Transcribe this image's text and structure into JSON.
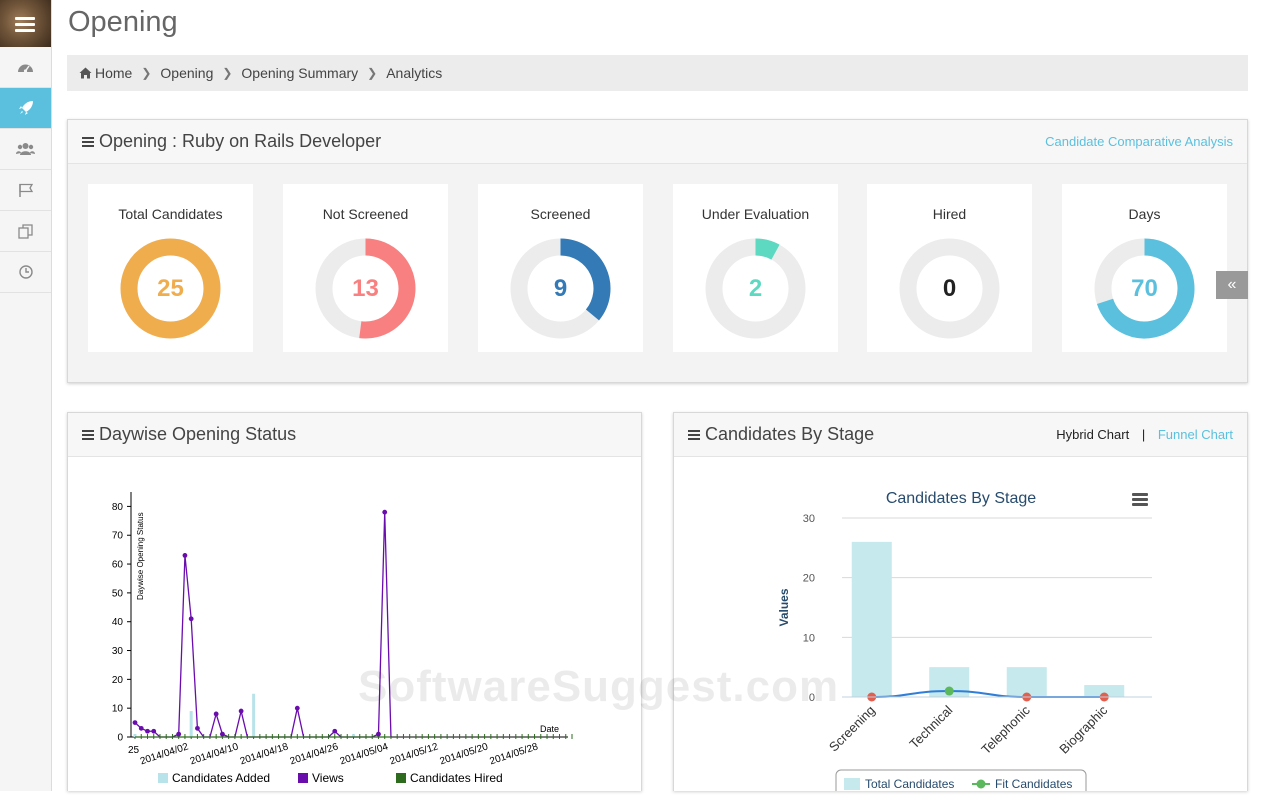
{
  "sidebar": {
    "items": [
      {
        "icon": "dashboard-icon"
      },
      {
        "icon": "rocket-icon",
        "active": true
      },
      {
        "icon": "users-icon"
      },
      {
        "icon": "flag-icon"
      },
      {
        "icon": "copy-icon"
      },
      {
        "icon": "clock-icon"
      }
    ]
  },
  "page": {
    "title": "Opening"
  },
  "breadcrumb": [
    "Home",
    "Opening",
    "Opening Summary",
    "Analytics"
  ],
  "opening_panel": {
    "title": "Opening : Ruby on Rails Developer",
    "link": "Candidate Comparative Analysis"
  },
  "stats": [
    {
      "label": "Total Candidates",
      "value": "25",
      "fraction": 1.0,
      "color": "#f0ad4e"
    },
    {
      "label": "Not Screened",
      "value": "13",
      "fraction": 0.52,
      "color": "#f98080"
    },
    {
      "label": "Screened",
      "value": "9",
      "fraction": 0.36,
      "color": "#337ab7"
    },
    {
      "label": "Under Evaluation",
      "value": "2",
      "fraction": 0.08,
      "color": "#5dd9c1"
    },
    {
      "label": "Hired",
      "value": "0",
      "fraction": 0.0,
      "color": "#222222"
    },
    {
      "label": "Days",
      "value": "70",
      "fraction": 0.7,
      "color": "#5bc0de"
    }
  ],
  "collapse_button": "«",
  "daywise_panel": {
    "title": "Daywise Opening Status"
  },
  "stage_panel": {
    "title": "Candidates By Stage",
    "tab_active": "Hybrid Chart",
    "tab_separator": "|",
    "tab_inactive": "Funnel Chart"
  },
  "chart_data": [
    {
      "type": "line",
      "title": "",
      "ylabel": "Daywise Opening Status",
      "xlabel": "Date",
      "ylim": [
        0,
        85
      ],
      "yticks": [
        0,
        10,
        20,
        30,
        40,
        50,
        60,
        70,
        80
      ],
      "first_tick_label": "25",
      "xtick_labels": [
        "2014/04/02",
        "2014/04/10",
        "2014/04/18",
        "2014/04/26",
        "2014/05/04",
        "2014/05/12",
        "2014/05/20",
        "2014/05/28"
      ],
      "x": [
        "2014/03/25",
        "2014/03/26",
        "2014/03/27",
        "2014/03/28",
        "2014/03/29",
        "2014/03/30",
        "2014/03/31",
        "2014/04/01",
        "2014/04/02",
        "2014/04/03",
        "2014/04/04",
        "2014/04/05",
        "2014/04/06",
        "2014/04/07",
        "2014/04/08",
        "2014/04/09",
        "2014/04/10",
        "2014/04/11",
        "2014/04/12",
        "2014/04/13",
        "2014/04/14",
        "2014/04/15",
        "2014/04/16",
        "2014/04/17",
        "2014/04/18",
        "2014/04/19",
        "2014/04/20",
        "2014/04/21",
        "2014/04/22",
        "2014/04/23",
        "2014/04/24",
        "2014/04/25",
        "2014/04/26",
        "2014/04/27",
        "2014/04/28",
        "2014/04/29",
        "2014/04/30",
        "2014/05/01",
        "2014/05/02",
        "2014/05/03",
        "2014/05/04",
        "2014/05/05"
      ],
      "series": [
        {
          "name": "Candidates Added",
          "color": "#b9e3ea",
          "values": [
            1,
            0,
            0,
            0,
            0,
            0,
            0,
            1,
            0,
            9,
            0,
            0,
            0,
            0,
            0,
            0,
            0,
            0,
            0,
            15,
            0,
            0,
            0,
            0,
            0,
            0,
            0,
            0,
            0,
            0,
            0,
            0,
            0,
            0,
            0,
            1,
            0,
            0,
            0,
            0,
            0,
            0
          ]
        },
        {
          "name": "Views",
          "color": "#6a0dad",
          "values": [
            5,
            3,
            2,
            2,
            0,
            0,
            0,
            1,
            63,
            41,
            3,
            0,
            0,
            8,
            1,
            0,
            0,
            9,
            0,
            0,
            0,
            0,
            0,
            0,
            0,
            0,
            10,
            0,
            0,
            0,
            0,
            0,
            2,
            0,
            0,
            0,
            0,
            0,
            0,
            1,
            78,
            0
          ]
        },
        {
          "name": "Candidates Hired",
          "color": "#2e6b1f",
          "values": [
            0,
            0,
            0,
            0,
            0,
            0,
            0,
            0,
            0,
            0,
            0,
            0,
            0,
            0,
            0,
            0,
            0,
            0,
            0,
            0,
            0,
            0,
            0,
            0,
            0,
            0,
            0,
            0,
            0,
            0,
            0,
            0,
            0,
            0,
            0,
            0,
            0,
            0,
            0,
            0,
            0,
            0
          ]
        }
      ]
    },
    {
      "type": "bar",
      "title": "Candidates By Stage",
      "ylabel": "Values",
      "xlabel": "",
      "ylim": [
        0,
        30
      ],
      "yticks": [
        0,
        10,
        20,
        30
      ],
      "categories": [
        "Screening",
        "Technical",
        "Telephonic",
        "Biographic"
      ],
      "series": [
        {
          "name": "Total Candidates",
          "type": "bar",
          "color": "#c5e9ec",
          "values": [
            26,
            5,
            5,
            2
          ]
        },
        {
          "name": "Fit Candidates",
          "type": "line",
          "color": "#5cb85c",
          "values": [
            0,
            1,
            0,
            0
          ]
        }
      ],
      "marker_colors": [
        "#e15f4f",
        "#5cb85c",
        "#e15f4f",
        "#e15f4f"
      ]
    }
  ],
  "watermark": "SoftwareSuggest.com"
}
